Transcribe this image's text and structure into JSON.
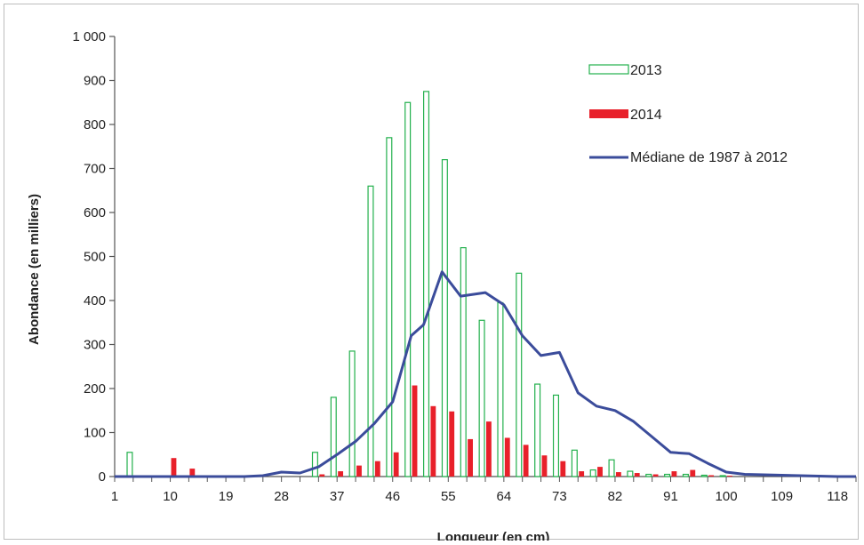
{
  "chart_data": {
    "type": "bar",
    "title": "",
    "xlabel": "Longueur (en cm)",
    "ylabel": "Abondance (en milliers)",
    "ylim": [
      0,
      1000
    ],
    "yticks": [
      0,
      100,
      200,
      300,
      400,
      500,
      600,
      700,
      800,
      900,
      1000
    ],
    "ytick_labels": [
      "0",
      "100",
      "200",
      "300",
      "400",
      "500",
      "600",
      "700",
      "800",
      "900",
      "1 000"
    ],
    "xlim": [
      1,
      121
    ],
    "xticks": [
      1,
      10,
      19,
      28,
      37,
      46,
      55,
      64,
      73,
      82,
      91,
      100,
      109,
      118
    ],
    "xtick_labels": [
      "1",
      "10",
      "19",
      "28",
      "37",
      "46",
      "55",
      "64",
      "73",
      "82",
      "91",
      "100",
      "109",
      "118"
    ],
    "grid": false,
    "legend_position": "top-right",
    "x": [
      4,
      7,
      10,
      13,
      16,
      19,
      22,
      25,
      28,
      31,
      34,
      37,
      40,
      43,
      46,
      49,
      52,
      55,
      58,
      61,
      64,
      67,
      70,
      73,
      76,
      79,
      82,
      85,
      88,
      91,
      94,
      97,
      100,
      103,
      106,
      109,
      112,
      115,
      118
    ],
    "series": [
      {
        "name": "2013",
        "type": "bar",
        "style": "outline",
        "color": "#22b04c",
        "values": [
          55,
          0,
          0,
          0,
          0,
          0,
          0,
          0,
          0,
          0,
          55,
          180,
          285,
          660,
          770,
          850,
          875,
          720,
          520,
          355,
          395,
          462,
          210,
          185,
          60,
          15,
          38,
          12,
          5,
          5,
          5,
          3,
          2,
          0,
          0,
          0,
          0,
          0,
          0
        ]
      },
      {
        "name": "2014",
        "type": "bar",
        "style": "filled",
        "color": "#e8202a",
        "values": [
          0,
          0,
          42,
          18,
          0,
          0,
          0,
          0,
          0,
          0,
          5,
          12,
          25,
          35,
          55,
          207,
          160,
          148,
          85,
          125,
          88,
          72,
          48,
          35,
          12,
          22,
          10,
          8,
          5,
          12,
          15,
          3,
          2,
          0,
          0,
          0,
          0,
          0,
          0
        ]
      },
      {
        "name": "Médiane de 1987 à 2012",
        "type": "line",
        "color": "#3b4c9b",
        "points": [
          [
            1,
            0
          ],
          [
            4,
            0
          ],
          [
            7,
            0
          ],
          [
            10,
            0
          ],
          [
            13,
            0
          ],
          [
            16,
            0
          ],
          [
            19,
            0
          ],
          [
            22,
            0
          ],
          [
            25,
            2
          ],
          [
            28,
            10
          ],
          [
            31,
            8
          ],
          [
            34,
            22
          ],
          [
            37,
            50
          ],
          [
            40,
            80
          ],
          [
            43,
            120
          ],
          [
            46,
            170
          ],
          [
            49,
            320
          ],
          [
            51,
            345
          ],
          [
            54,
            465
          ],
          [
            57,
            410
          ],
          [
            61,
            418
          ],
          [
            64,
            390
          ],
          [
            67,
            320
          ],
          [
            70,
            275
          ],
          [
            73,
            282
          ],
          [
            76,
            190
          ],
          [
            79,
            160
          ],
          [
            82,
            150
          ],
          [
            85,
            125
          ],
          [
            88,
            90
          ],
          [
            91,
            55
          ],
          [
            94,
            52
          ],
          [
            97,
            30
          ],
          [
            100,
            10
          ],
          [
            103,
            5
          ],
          [
            106,
            4
          ],
          [
            109,
            3
          ],
          [
            112,
            2
          ],
          [
            115,
            1
          ],
          [
            118,
            0
          ],
          [
            121,
            0
          ]
        ]
      }
    ]
  }
}
